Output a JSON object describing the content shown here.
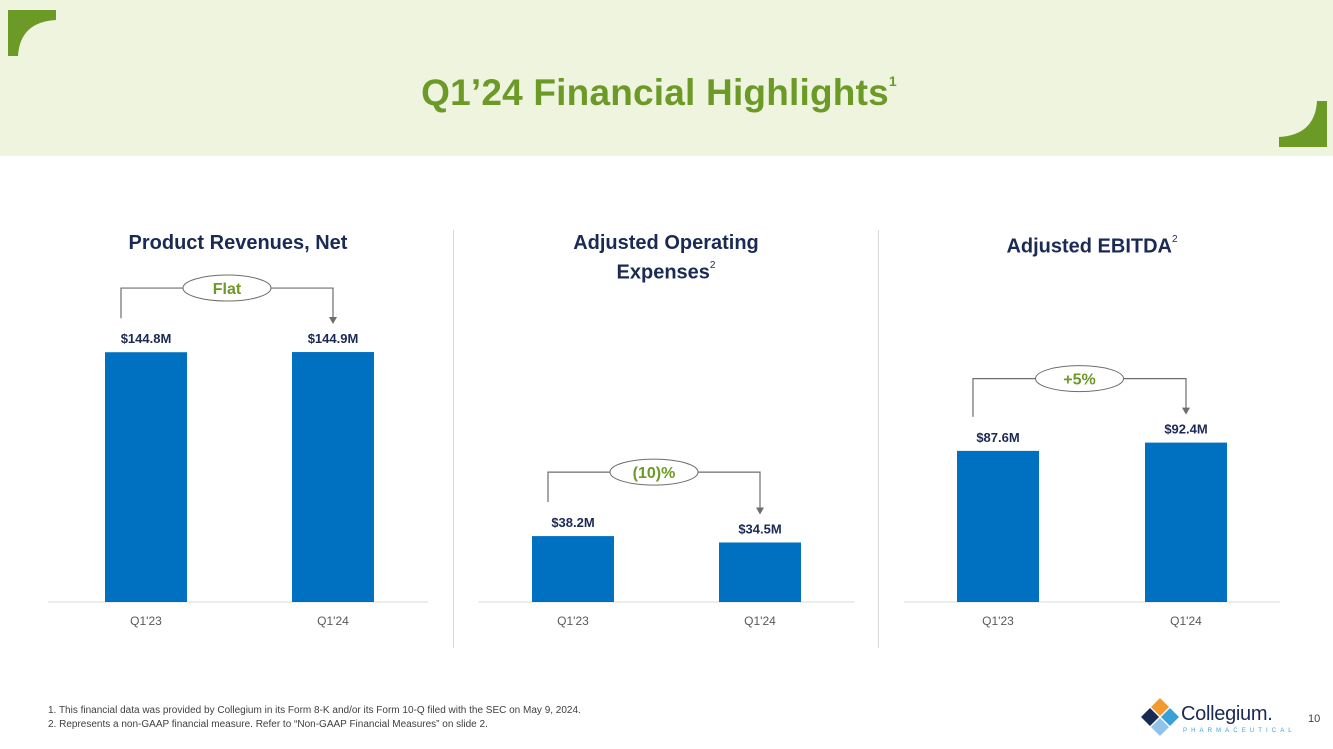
{
  "slide": {
    "title": "Q1’24 Financial Highlights",
    "title_footnote_ref": "1",
    "page_number": "10",
    "accent_color": "#6c9a27",
    "bar_color": "#0070c0",
    "header_bg": "#eff4df"
  },
  "footnotes": [
    "1. This financial data was provided by Collegium in its Form 8-K and/or its Form 10-Q filed with the SEC on May 9, 2024.",
    "2. Represents a non-GAAP financial measure. Refer to “Non-GAAP Financial Measures” on slide 2."
  ],
  "logo": {
    "name": "Collegium",
    "trademark": ".",
    "tagline": "PHARMACEUTICAL"
  },
  "chart_data": [
    {
      "type": "bar",
      "title": "Product Revenues, Net",
      "title_footnote_ref": "",
      "categories": [
        "Q1'23",
        "Q1'24"
      ],
      "values": [
        144.8,
        144.9
      ],
      "value_labels": [
        "$144.8M",
        "$144.9M"
      ],
      "unit": "$M",
      "change_label": "Flat",
      "grid": false
    },
    {
      "type": "bar",
      "title": "Adjusted Operating Expenses",
      "title_lines": [
        "Adjusted Operating",
        "Expenses"
      ],
      "title_footnote_ref": "2",
      "categories": [
        "Q1'23",
        "Q1'24"
      ],
      "values": [
        38.2,
        34.5
      ],
      "value_labels": [
        "$38.2M",
        "$34.5M"
      ],
      "unit": "$M",
      "change_label": "(10)%",
      "grid": false
    },
    {
      "type": "bar",
      "title": "Adjusted EBITDA",
      "title_footnote_ref": "2",
      "categories": [
        "Q1'23",
        "Q1'24"
      ],
      "values": [
        87.6,
        92.4
      ],
      "value_labels": [
        "$87.6M",
        "$92.4M"
      ],
      "unit": "$M",
      "change_label": "+5%",
      "grid": false
    }
  ]
}
